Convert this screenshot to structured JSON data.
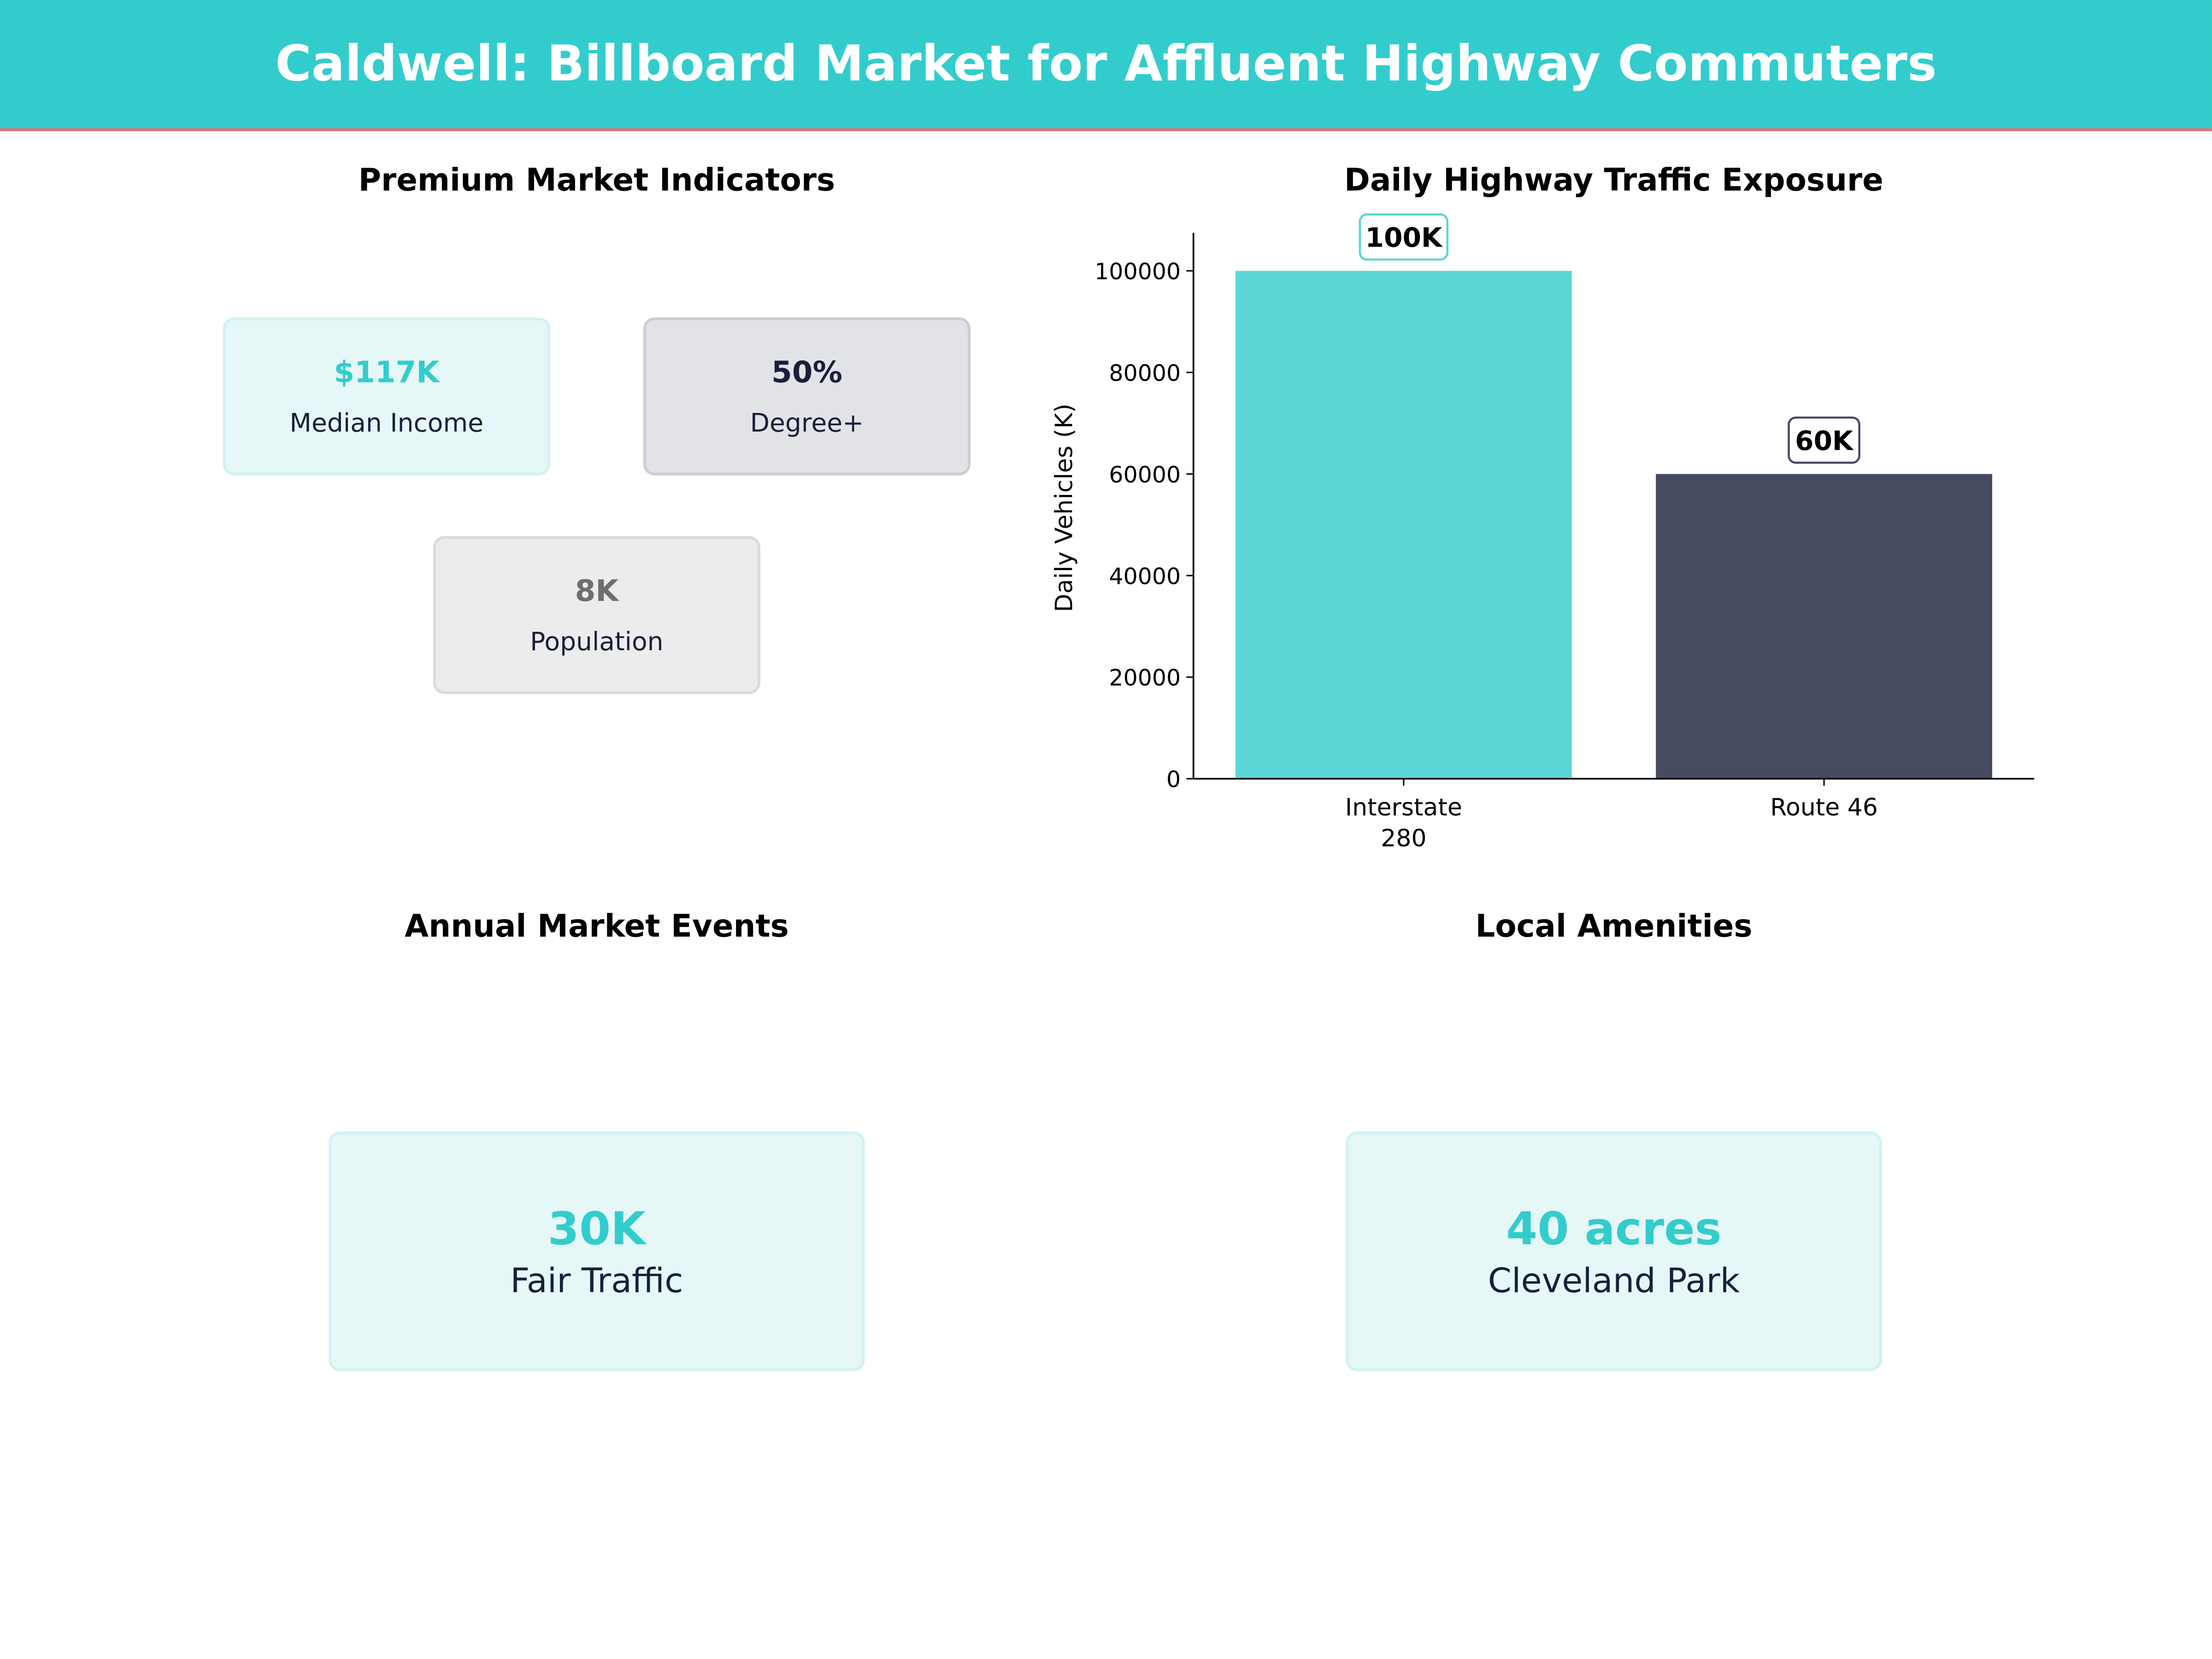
{
  "header": {
    "title": "Caldwell: Billboard Market for Affluent Highway Commuters"
  },
  "indicators": {
    "title": "Premium Market Indicators",
    "cards": [
      {
        "value": "$117K",
        "label": "Median Income",
        "color": "#33cccc"
      },
      {
        "value": "50%",
        "label": "Degree+",
        "color": "#1a1f3a"
      },
      {
        "value": "8K",
        "label": "Population",
        "color": "#6e6e6e"
      }
    ]
  },
  "events": {
    "title": "Annual Market Events",
    "value": "30K",
    "label": "Fair Traffic"
  },
  "amenities": {
    "title": "Local Amenities",
    "value": "40 acres",
    "label": "Cleveland Park"
  },
  "chart_data": {
    "type": "bar",
    "title": "Daily Highway Traffic Exposure",
    "xlabel": "",
    "ylabel": "Daily Vehicles (K)",
    "categories": [
      "Interstate\n280",
      "Route 46"
    ],
    "category_lines": [
      [
        "Interstate",
        "280"
      ],
      [
        "Route 46"
      ]
    ],
    "values": [
      100000,
      60000
    ],
    "data_labels": [
      "100K",
      "60K"
    ],
    "colors": [
      "#5cd6d4",
      "#464b62"
    ],
    "yticks": [
      "0",
      "20000",
      "40000",
      "60000",
      "80000",
      "100000"
    ],
    "ylim": [
      0,
      107500
    ],
    "grid": false
  }
}
